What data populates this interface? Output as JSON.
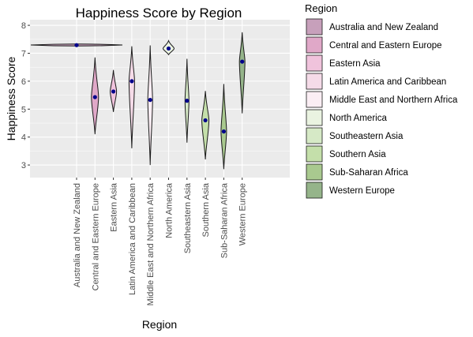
{
  "chart_data": {
    "type": "violin",
    "title": "Happiness Score by Region",
    "xlabel": "Region",
    "ylabel": "Happiness Score",
    "ylim": [
      2.55,
      8.2
    ],
    "yticks": [
      3,
      4,
      5,
      6,
      7,
      8
    ],
    "grid": true,
    "legend": {
      "title": "Region",
      "placement": "right"
    },
    "categories": [
      "Australia and New Zealand",
      "Central and Eastern Europe",
      "Eastern Asia",
      "Latin America and Caribbean",
      "Middle East and Northern Africa",
      "North America",
      "Southeastern Asia",
      "Southern Asia",
      "Sub-Saharan Africa",
      "Western Europe"
    ],
    "colors": [
      "#c7a0bb",
      "#e0a8c8",
      "#f0c3dc",
      "#f5dbe8",
      "#fbeef4",
      "#eaf3e1",
      "#d6e9c6",
      "#c4dfaa",
      "#a9c98f",
      "#95b48a"
    ],
    "series": [
      {
        "min": 7.28,
        "max": 7.31,
        "mean": 7.29
      },
      {
        "min": 4.1,
        "max": 6.85,
        "mean": 5.43
      },
      {
        "min": 4.9,
        "max": 6.4,
        "mean": 5.63
      },
      {
        "min": 3.6,
        "max": 7.25,
        "mean": 6.0
      },
      {
        "min": 3.0,
        "max": 7.28,
        "mean": 5.33
      },
      {
        "min": 6.95,
        "max": 7.45,
        "mean": 7.17
      },
      {
        "min": 3.8,
        "max": 6.8,
        "mean": 5.3
      },
      {
        "min": 3.2,
        "max": 5.65,
        "mean": 4.6
      },
      {
        "min": 2.85,
        "max": 5.9,
        "mean": 4.2
      },
      {
        "min": 4.85,
        "max": 7.75,
        "mean": 6.7
      }
    ]
  }
}
